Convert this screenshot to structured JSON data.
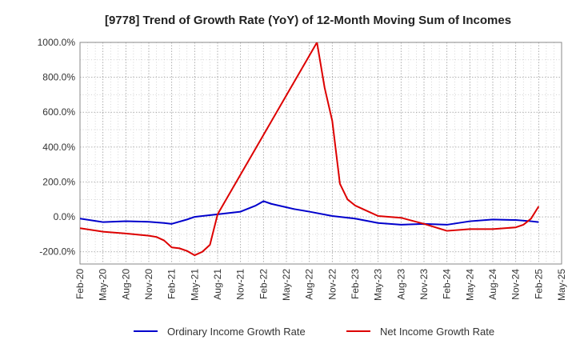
{
  "chart_data": {
    "type": "line",
    "title": "[9778]  Trend of Growth Rate (YoY) of 12-Month Moving Sum of Incomes",
    "xlabel": "",
    "ylabel": "",
    "ylim": [
      -270,
      1000
    ],
    "y_ticks": [
      -200,
      0,
      200,
      400,
      600,
      800,
      1000
    ],
    "y_tick_labels": [
      "-200.0%",
      "0.0%",
      "200.0%",
      "400.0%",
      "600.0%",
      "800.0%",
      "1000.0%"
    ],
    "x_tick_labels": [
      "Feb-20",
      "May-20",
      "Aug-20",
      "Nov-20",
      "Feb-21",
      "May-21",
      "Aug-21",
      "Nov-21",
      "Feb-22",
      "May-22",
      "Aug-22",
      "Nov-22",
      "Feb-23",
      "May-23",
      "Aug-23",
      "Nov-23",
      "Feb-24",
      "May-24",
      "Aug-24",
      "Nov-24",
      "Feb-25",
      "May-25"
    ],
    "grid": true,
    "legend_position": "bottom",
    "series": [
      {
        "name": "Ordinary Income Growth Rate",
        "color": "#0000cc",
        "points": [
          {
            "x": "Feb-20",
            "y": -10
          },
          {
            "x": "May-20",
            "y": -30
          },
          {
            "x": "Aug-20",
            "y": -25
          },
          {
            "x": "Nov-20",
            "y": -28
          },
          {
            "x": "Jan-21",
            "y": -35
          },
          {
            "x": "Feb-21",
            "y": -40
          },
          {
            "x": "Apr-21",
            "y": -15
          },
          {
            "x": "May-21",
            "y": 0
          },
          {
            "x": "Aug-21",
            "y": 15
          },
          {
            "x": "Nov-21",
            "y": 30
          },
          {
            "x": "Jan-22",
            "y": 65
          },
          {
            "x": "Feb-22",
            "y": 90
          },
          {
            "x": "Mar-22",
            "y": 75
          },
          {
            "x": "May-22",
            "y": 55
          },
          {
            "x": "Jun-22",
            "y": 45
          },
          {
            "x": "Aug-22",
            "y": 30
          },
          {
            "x": "Nov-22",
            "y": 5
          },
          {
            "x": "Feb-23",
            "y": -10
          },
          {
            "x": "May-23",
            "y": -35
          },
          {
            "x": "Aug-23",
            "y": -45
          },
          {
            "x": "Nov-23",
            "y": -40
          },
          {
            "x": "Feb-24",
            "y": -45
          },
          {
            "x": "May-24",
            "y": -25
          },
          {
            "x": "Aug-24",
            "y": -15
          },
          {
            "x": "Nov-24",
            "y": -18
          },
          {
            "x": "Jan-25",
            "y": -25
          },
          {
            "x": "Feb-25",
            "y": -30
          }
        ]
      },
      {
        "name": "Net Income Growth Rate",
        "color": "#dd0000",
        "points": [
          {
            "x": "Feb-20",
            "y": -65
          },
          {
            "x": "May-20",
            "y": -85
          },
          {
            "x": "Aug-20",
            "y": -95
          },
          {
            "x": "Nov-20",
            "y": -108
          },
          {
            "x": "Dec-20",
            "y": -115
          },
          {
            "x": "Jan-21",
            "y": -135
          },
          {
            "x": "Feb-21",
            "y": -175
          },
          {
            "x": "Mar-21",
            "y": -180
          },
          {
            "x": "Apr-21",
            "y": -195
          },
          {
            "x": "May-21",
            "y": -220
          },
          {
            "x": "Jun-21",
            "y": -200
          },
          {
            "x": "Jul-21",
            "y": -160
          },
          {
            "x": "Aug-21",
            "y": 15
          },
          {
            "x": "Sep-22",
            "y": 1000
          },
          {
            "x": "Oct-22",
            "y": 740
          },
          {
            "x": "Nov-22",
            "y": 550
          },
          {
            "x": "Dec-22",
            "y": 190
          },
          {
            "x": "Jan-23",
            "y": 100
          },
          {
            "x": "Feb-23",
            "y": 65
          },
          {
            "x": "Mar-23",
            "y": 45
          },
          {
            "x": "May-23",
            "y": 5
          },
          {
            "x": "Aug-23",
            "y": -5
          },
          {
            "x": "Nov-23",
            "y": -40
          },
          {
            "x": "Feb-24",
            "y": -80
          },
          {
            "x": "May-24",
            "y": -70
          },
          {
            "x": "Aug-24",
            "y": -70
          },
          {
            "x": "Nov-24",
            "y": -60
          },
          {
            "x": "Dec-24",
            "y": -45
          },
          {
            "x": "Jan-25",
            "y": -10
          },
          {
            "x": "Feb-25",
            "y": 60
          }
        ]
      }
    ]
  }
}
